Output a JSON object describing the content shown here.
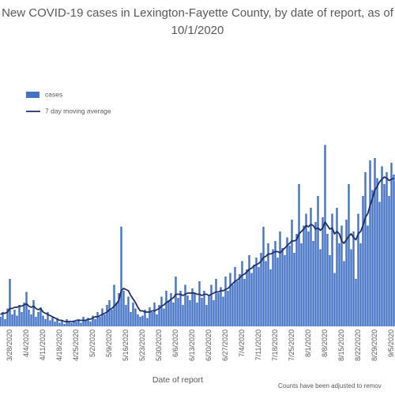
{
  "chart_data": {
    "type": "bar",
    "title": "New COVID-19 cases in Lexington-Fayette County, by date of report, as of 10/1/2020",
    "x_label": "Date of report",
    "note": "Counts have been adjusted to remov",
    "legend": "top-left",
    "ylim": [
      0,
      190
    ],
    "categories": [
      null,
      null,
      null,
      null,
      "3/28/2020",
      null,
      null,
      null,
      null,
      null,
      null,
      "4/4/2020",
      null,
      null,
      null,
      null,
      null,
      null,
      "4/11/2020",
      null,
      null,
      null,
      null,
      null,
      null,
      "4/18/2020",
      null,
      null,
      null,
      null,
      null,
      null,
      "4/25/2020",
      null,
      null,
      null,
      null,
      null,
      null,
      "5/2/2020",
      null,
      null,
      null,
      null,
      null,
      null,
      "5/9/2020",
      null,
      null,
      null,
      null,
      null,
      null,
      "5/16/2020",
      null,
      null,
      null,
      null,
      null,
      null,
      "5/23/2020",
      null,
      null,
      null,
      null,
      null,
      null,
      "5/30/2020",
      null,
      null,
      null,
      null,
      null,
      null,
      "6/6/2020",
      null,
      null,
      null,
      null,
      null,
      null,
      "6/13/2020",
      null,
      null,
      null,
      null,
      null,
      null,
      "6/20/2020",
      null,
      null,
      null,
      null,
      null,
      null,
      "6/27/2020",
      null,
      null,
      null,
      null,
      null,
      null,
      "7/4/2020",
      null,
      null,
      null,
      null,
      null,
      null,
      "7/11/2020",
      null,
      null,
      null,
      null,
      null,
      null,
      "7/18/2020",
      null,
      null,
      null,
      null,
      null,
      null,
      "7/25/2020",
      null,
      null,
      null,
      null,
      null,
      null,
      "8/1/2020",
      null,
      null,
      null,
      null,
      null,
      null,
      "8/8/2020",
      null,
      null,
      null,
      null,
      null,
      null,
      "8/15/2020",
      null,
      null,
      null,
      null,
      null,
      null,
      "8/22/2020",
      null,
      null,
      null,
      null,
      null,
      null,
      "8/29/2020",
      null,
      null,
      null,
      null,
      null,
      null,
      "9/5/2020",
      null
    ],
    "series": [
      {
        "name": "cases",
        "color": "#4472c4",
        "values": [
          8,
          12,
          6,
          15,
          40,
          10,
          14,
          9,
          18,
          12,
          20,
          29,
          14,
          10,
          22,
          8,
          12,
          16,
          9,
          6,
          12,
          5,
          8,
          4,
          7,
          3,
          5,
          2,
          6,
          4,
          3,
          5,
          4,
          6,
          3,
          8,
          5,
          7,
          4,
          9,
          6,
          12,
          8,
          15,
          10,
          18,
          22,
          14,
          35,
          20,
          28,
          84,
          30,
          18,
          25,
          12,
          20,
          15,
          10,
          8,
          9,
          14,
          7,
          16,
          12,
          20,
          10,
          18,
          25,
          15,
          30,
          22,
          28,
          20,
          42,
          24,
          30,
          18,
          35,
          26,
          22,
          32,
          28,
          20,
          38,
          24,
          30,
          18,
          26,
          35,
          22,
          40,
          28,
          33,
          25,
          42,
          30,
          45,
          35,
          50,
          38,
          44,
          55,
          40,
          48,
          60,
          45,
          52,
          58,
          50,
          62,
          84,
          55,
          70,
          48,
          65,
          72,
          58,
          80,
          66,
          60,
          75,
          68,
          90,
          62,
          78,
          120,
          70,
          85,
          95,
          80,
          100,
          72,
          88,
          110,
          65,
          92,
          153,
          78,
          60,
          95,
          45,
          100,
          70,
          85,
          55,
          90,
          120,
          65,
          80,
          40,
          95,
          70,
          110,
          130,
          85,
          140,
          115,
          142,
          125,
          105,
          135,
          120,
          130,
          110,
          138,
          128
        ]
      },
      {
        "name": "7 day moving average",
        "type": "line",
        "color": "#1f2d6b",
        "values": [
          10,
          11,
          11,
          12,
          15,
          15,
          16,
          16,
          17,
          17,
          18,
          19,
          17,
          16,
          17,
          15,
          14,
          15,
          12,
          11,
          10,
          9,
          8,
          7,
          6,
          5,
          5,
          4,
          4,
          4,
          4,
          4,
          5,
          5,
          5,
          5,
          5,
          6,
          6,
          7,
          8,
          8,
          9,
          10,
          11,
          12,
          14,
          15,
          17,
          19,
          22,
          30,
          32,
          31,
          30,
          26,
          23,
          20,
          16,
          13,
          13,
          12,
          12,
          12,
          13,
          13,
          14,
          15,
          17,
          18,
          20,
          21,
          23,
          24,
          27,
          27,
          27,
          26,
          27,
          28,
          28,
          28,
          28,
          27,
          27,
          26,
          27,
          27,
          26,
          27,
          28,
          29,
          29,
          30,
          30,
          31,
          32,
          34,
          36,
          38,
          39,
          41,
          43,
          44,
          46,
          48,
          49,
          51,
          52,
          53,
          55,
          58,
          59,
          61,
          61,
          62,
          63,
          63,
          62,
          64,
          66,
          68,
          70,
          72,
          72,
          73,
          78,
          80,
          82,
          85,
          84,
          86,
          85,
          82,
          83,
          81,
          83,
          88,
          85,
          82,
          83,
          78,
          80,
          78,
          72,
          70,
          73,
          76,
          78,
          75,
          73,
          78,
          80,
          85,
          92,
          95,
          102,
          108,
          115,
          118,
          122,
          124,
          126,
          125,
          123,
          124,
          125
        ]
      }
    ]
  }
}
